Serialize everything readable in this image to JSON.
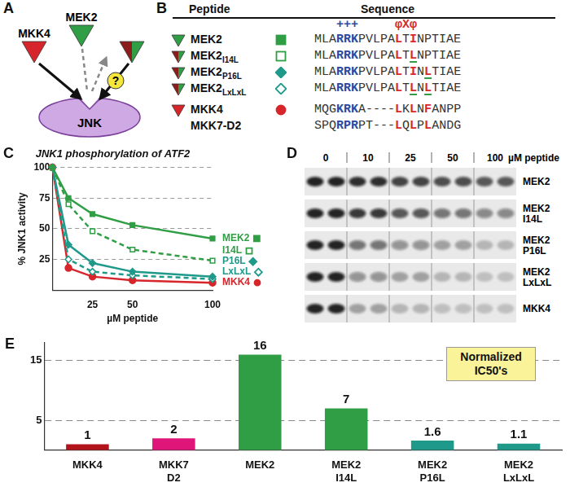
{
  "panels": {
    "A": {
      "label": "A",
      "kinases": [
        {
          "label": "MKK4",
          "colors": [
            "#d7262b"
          ]
        },
        {
          "label": "MEK2",
          "colors": [
            "#2f9e44"
          ]
        },
        {
          "colors": [
            "#8c1d1d",
            "#2f9e44"
          ]
        }
      ],
      "query": {
        "label": "?",
        "color": "#f5e63b"
      },
      "target": {
        "label": "JNK",
        "color": "#cfa9e3"
      }
    },
    "B": {
      "label": "B",
      "header": [
        "Peptide",
        "Sequence"
      ],
      "motifs": [
        {
          "text": "+++",
          "color": "#2b4aa0"
        },
        {
          "text": "φXφ",
          "color": "#d42a2a"
        }
      ],
      "rows": [
        {
          "name": "MEK2",
          "triangle": [
            "#2f9e44"
          ],
          "marker": "square",
          "color": "#2f9e44",
          "sequence": [
            {
              "text": "MLA"
            },
            {
              "text": "RRK",
              "color": "#2b4aa0"
            },
            {
              "text": "PVLPA"
            },
            {
              "text": "L",
              "color": "#d42a2a"
            },
            {
              "text": "T"
            },
            {
              "text": "I",
              "color": "#d42a2a"
            },
            {
              "text": "NPTIAE"
            }
          ]
        },
        {
          "name": "MEK2",
          "subscript": "I14L",
          "triangle": [
            "#8c1d1d",
            "#2f9e44"
          ],
          "marker": "square-open",
          "color": "#2f9e44",
          "sequence": [
            {
              "text": "MLA"
            },
            {
              "text": "RRK",
              "color": "#2b4aa0"
            },
            {
              "text": "PVLPA"
            },
            {
              "text": "L",
              "color": "#d42a2a"
            },
            {
              "text": "T"
            },
            {
              "text": "L",
              "color": "#d42a2a",
              "underline": "#2f9e44"
            },
            {
              "text": "NPTIAE"
            }
          ]
        },
        {
          "name": "MEK2",
          "subscript": "P16L",
          "triangle": [
            "#8c1d1d",
            "#2f9e44"
          ],
          "marker": "diamond",
          "color": "#1f9a8a",
          "sequence": [
            {
              "text": "MLA"
            },
            {
              "text": "RRK",
              "color": "#2b4aa0"
            },
            {
              "text": "PVLPA"
            },
            {
              "text": "L",
              "color": "#d42a2a"
            },
            {
              "text": "T"
            },
            {
              "text": "I",
              "color": "#d42a2a"
            },
            {
              "text": "N"
            },
            {
              "text": "L",
              "color": "#d42a2a",
              "underline": "#2f9e44"
            },
            {
              "text": "TIAE"
            }
          ]
        },
        {
          "name": "MEK2",
          "subscript": "LxLxL",
          "triangle": [
            "#8c1d1d",
            "#2f9e44"
          ],
          "marker": "diamond-open",
          "color": "#1f9a8a",
          "sequence": [
            {
              "text": "MLA"
            },
            {
              "text": "RRK",
              "color": "#2b4aa0"
            },
            {
              "text": "PVLPA"
            },
            {
              "text": "L",
              "color": "#d42a2a"
            },
            {
              "text": "T"
            },
            {
              "text": "L",
              "color": "#d42a2a",
              "underline": "#2f9e44"
            },
            {
              "text": "N"
            },
            {
              "text": "L",
              "color": "#d42a2a",
              "underline": "#2f9e44"
            },
            {
              "text": "TIAE"
            }
          ]
        },
        {
          "name": "MKK4",
          "triangle": [
            "#d7262b"
          ],
          "marker": "circle",
          "color": "#d7262b",
          "sequence": [
            {
              "text": "MQG"
            },
            {
              "text": "KRK",
              "color": "#2b4aa0"
            },
            {
              "text": "A----"
            },
            {
              "text": "L",
              "color": "#d42a2a"
            },
            {
              "text": "K"
            },
            {
              "text": "L",
              "color": "#d42a2a"
            },
            {
              "text": "N"
            },
            {
              "text": "F",
              "color": "#d42a2a"
            },
            {
              "text": "ANPP"
            }
          ]
        },
        {
          "name": "MKK7-D2",
          "sequence": [
            {
              "text": "SPQ"
            },
            {
              "text": "RPR",
              "color": "#2b4aa0"
            },
            {
              "text": "PT---"
            },
            {
              "text": "L",
              "color": "#d42a2a"
            },
            {
              "text": "Q"
            },
            {
              "text": "L",
              "color": "#d42a2a"
            },
            {
              "text": "P"
            },
            {
              "text": "L",
              "color": "#d42a2a"
            },
            {
              "text": "ANDG"
            }
          ]
        }
      ]
    },
    "C": {
      "label": "C"
    },
    "D": {
      "label": "D",
      "concentrations": [
        0,
        10,
        25,
        50,
        100
      ],
      "unit": "µM peptide",
      "rows": [
        {
          "label": [
            "MEK2"
          ],
          "intensity": [
            1,
            1,
            0.95,
            0.95,
            0.85,
            0.85,
            0.8,
            0.8,
            0.75,
            0.75
          ]
        },
        {
          "label": [
            "MEK2",
            "I14L"
          ],
          "intensity": [
            1,
            1,
            0.9,
            0.9,
            0.75,
            0.75,
            0.6,
            0.6,
            0.5,
            0.5
          ]
        },
        {
          "label": [
            "MEK2",
            "P16L"
          ],
          "intensity": [
            1,
            1,
            0.6,
            0.6,
            0.45,
            0.45,
            0.35,
            0.35,
            0.25,
            0.25
          ]
        },
        {
          "label": [
            "MEK2",
            "LxLxL"
          ],
          "intensity": [
            1,
            1,
            0.45,
            0.45,
            0.35,
            0.35,
            0.25,
            0.25,
            0.2,
            0.2
          ]
        },
        {
          "label": [
            "MKK4"
          ],
          "intensity": [
            1,
            1,
            0.35,
            0.35,
            0.25,
            0.25,
            0.2,
            0.2,
            0.2,
            0.2
          ]
        }
      ]
    },
    "E": {
      "label": "E"
    }
  },
  "chart_data": [
    {
      "type": "line",
      "title": "JNK1 phosphorylation of ATF2",
      "x_label": "µM peptide",
      "y_label": "% JNK1 activity",
      "x": [
        0,
        10,
        25,
        50,
        100
      ],
      "xlim": [
        0,
        100
      ],
      "xticks": [
        25,
        50,
        100
      ],
      "ylim": [
        0,
        100
      ],
      "yticks": [
        25,
        50,
        75,
        100
      ],
      "grid": true,
      "series": [
        {
          "name": "MEK2",
          "color": "#2f9e44",
          "marker": "square",
          "line_style": "solid",
          "values": [
            100,
            75,
            62,
            53,
            42
          ]
        },
        {
          "name": "I14L",
          "color": "#2f9e44",
          "marker": "square-open",
          "line_style": "dashed",
          "values": [
            100,
            70,
            48,
            33,
            24
          ]
        },
        {
          "name": "P16L",
          "color": "#1f9a8a",
          "marker": "diamond",
          "line_style": "solid",
          "values": [
            100,
            37,
            22,
            15,
            11
          ]
        },
        {
          "name": "LxLxL",
          "color": "#1f9a8a",
          "marker": "diamond-open",
          "line_style": "dashed",
          "values": [
            100,
            25,
            15,
            12,
            9
          ]
        },
        {
          "name": "MKK4",
          "color": "#d7262b",
          "marker": "circle",
          "line_style": "solid",
          "values": [
            100,
            18,
            11,
            8,
            6
          ]
        }
      ]
    },
    {
      "type": "bar",
      "title": "Normalized IC50's",
      "categories": [
        "MKK4",
        [
          "MKK7",
          "D2"
        ],
        "MEK2",
        [
          "MEK2",
          "I14L"
        ],
        [
          "MEK2",
          "P16L"
        ],
        [
          "MEK2",
          "LxLxL"
        ]
      ],
      "values": [
        1,
        2,
        16,
        7,
        1.6,
        1.1
      ],
      "colors": [
        "#b3141c",
        "#e0157a",
        "#2f9e44",
        "#2f9e44",
        "#1f9a8a",
        "#1f9a8a"
      ],
      "ylim": [
        0,
        18
      ],
      "yticks": [
        5,
        15
      ],
      "grid": true,
      "data_labels": true
    }
  ]
}
